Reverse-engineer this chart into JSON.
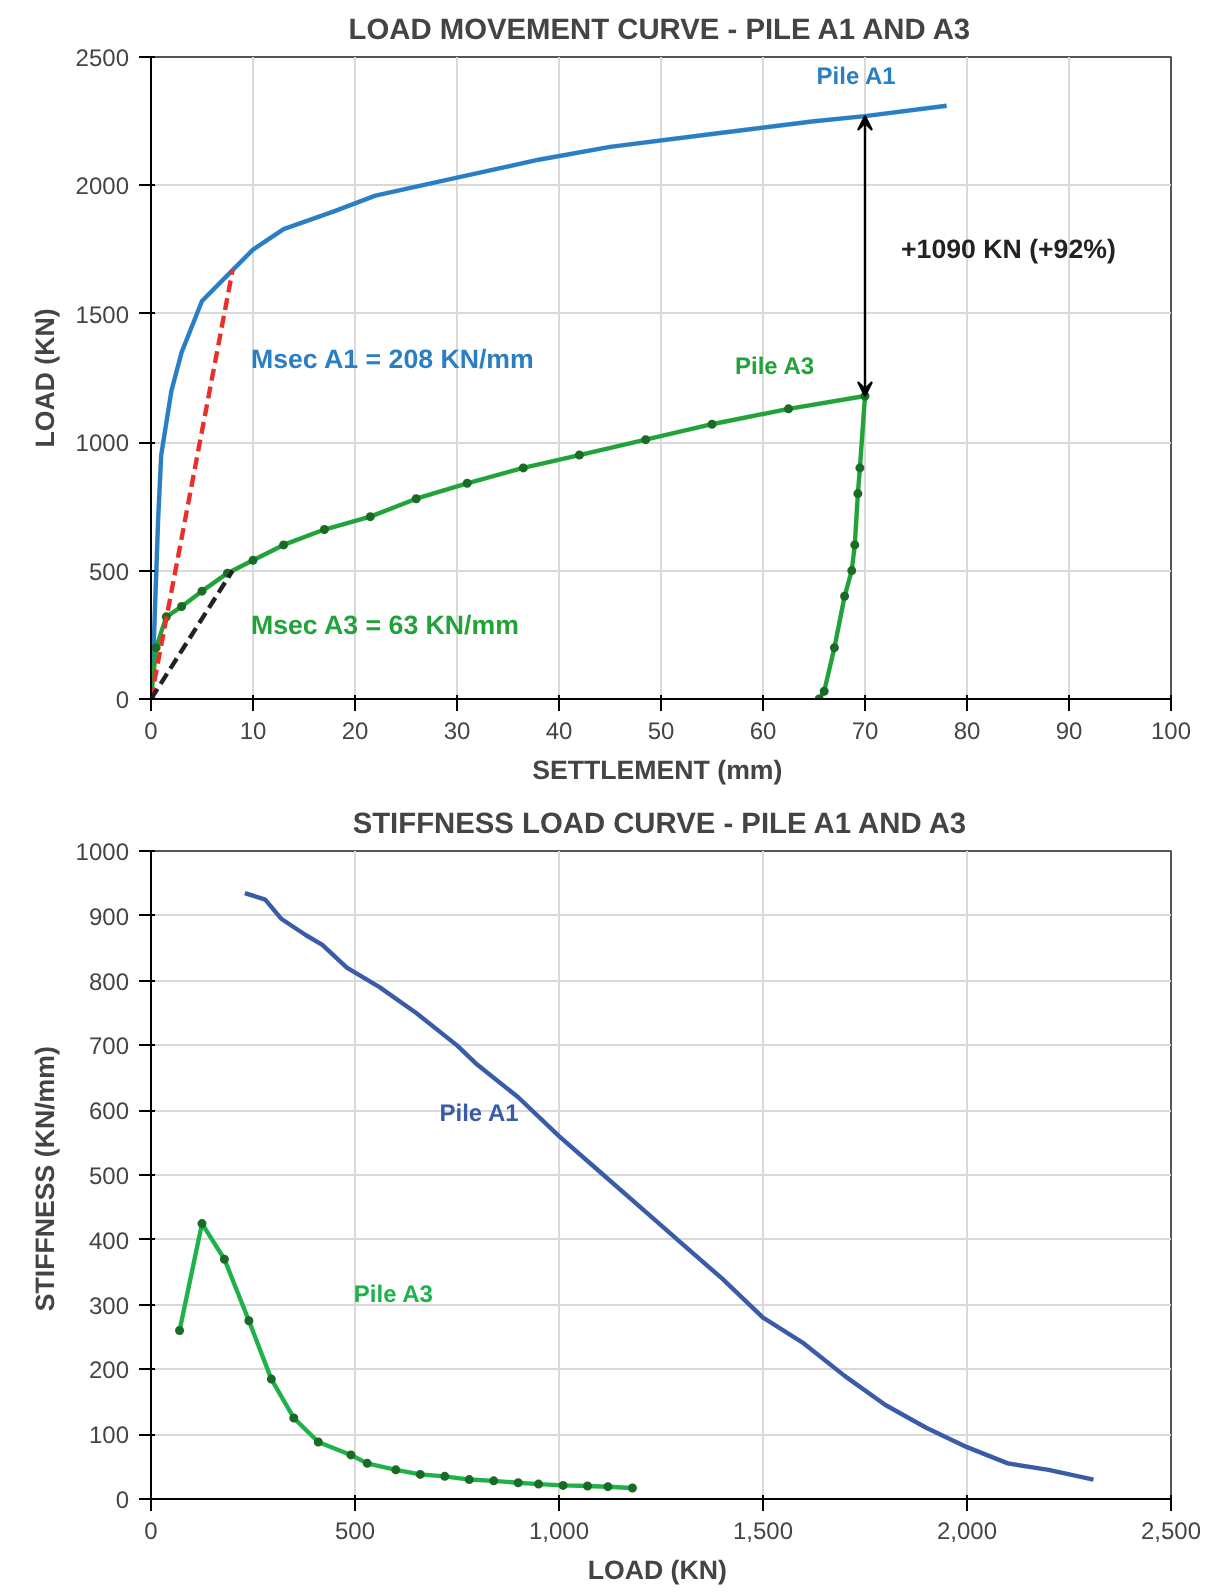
{
  "chart_data": [
    {
      "type": "line",
      "title": "LOAD MOVEMENT CURVE - PILE A1 AND A3",
      "xlabel": "SETTLEMENT  (mm)",
      "ylabel": "LOAD (KN)",
      "xlim": [
        0,
        100
      ],
      "xticks": [
        0,
        10,
        20,
        30,
        40,
        50,
        60,
        70,
        80,
        90,
        100
      ],
      "ylim": [
        0,
        2500
      ],
      "yticks": [
        0,
        500,
        1000,
        1500,
        2000,
        2500
      ],
      "grid": true,
      "series": [
        {
          "name": "Pile A1",
          "color": "#2a7fc4",
          "marker": "none",
          "x": [
            0,
            0.3,
            0.7,
            1,
            2,
            3,
            5,
            8,
            10,
            13,
            18,
            22,
            30,
            38,
            45,
            55,
            65,
            70,
            78
          ],
          "values": [
            0,
            250,
            700,
            950,
            1200,
            1350,
            1550,
            1670,
            1750,
            1830,
            1900,
            1960,
            2030,
            2100,
            2150,
            2200,
            2250,
            2270,
            2310
          ]
        },
        {
          "name": "Pile A3",
          "color": "#22a33a",
          "marker": "circle",
          "x": [
            0,
            0.5,
            1.5,
            3,
            5,
            7.5,
            10,
            13,
            17,
            21.5,
            26,
            31,
            36.5,
            42,
            48.5,
            55,
            62.5,
            70,
            69.5,
            69.3,
            69,
            68.7,
            68,
            67,
            66,
            65.5
          ],
          "values": [
            0,
            200,
            320,
            360,
            420,
            490,
            540,
            600,
            660,
            710,
            780,
            840,
            900,
            950,
            1010,
            1070,
            1130,
            1180,
            900,
            800,
            600,
            500,
            400,
            200,
            30,
            0
          ]
        },
        {
          "color": "#e8302a",
          "marker": "none",
          "line_style": "dashed",
          "x": [
            0,
            8
          ],
          "values": [
            0,
            1670
          ]
        },
        {
          "color": "#222222",
          "marker": "none",
          "line_style": "dashed",
          "x": [
            0,
            8
          ],
          "values": [
            0,
            500
          ]
        }
      ],
      "annotations": [
        "Msec A1 = 208 KN/mm",
        "Msec A3 = 63 KN/mm",
        "+1090 KN (+92%)"
      ]
    },
    {
      "type": "line",
      "title": "STIFFNESS LOAD CURVE - PILE A1 AND A3",
      "xlabel": "LOAD  (KN)",
      "ylabel": "STIFFNESS  (KN/mm)",
      "xlim": [
        0,
        2500
      ],
      "xticks": [
        0,
        500,
        {
          "value": 1000,
          "label": "1,000"
        },
        {
          "value": 1500,
          "label": "1,500"
        },
        {
          "value": 2000,
          "label": "2,000"
        },
        {
          "value": 2500,
          "label": "2,500"
        }
      ],
      "ylim": [
        0,
        1000
      ],
      "yticks": [
        0,
        100,
        200,
        300,
        400,
        500,
        600,
        700,
        800,
        900,
        1000
      ],
      "grid": true,
      "series": [
        {
          "name": "Pile A1",
          "color": "#3a5ba8",
          "marker": "none",
          "x": [
            230,
            280,
            320,
            380,
            420,
            480,
            560,
            650,
            750,
            800,
            900,
            1000,
            1100,
            1200,
            1300,
            1400,
            1500,
            1600,
            1700,
            1800,
            1900,
            2000,
            2100,
            2200,
            2310
          ],
          "values": [
            935,
            925,
            895,
            870,
            855,
            820,
            790,
            750,
            700,
            670,
            620,
            560,
            505,
            450,
            395,
            340,
            280,
            240,
            190,
            145,
            110,
            80,
            55,
            45,
            30
          ]
        },
        {
          "name": "Pile A3",
          "color": "#1fb24a",
          "marker": "circle",
          "x": [
            70,
            125,
            180,
            240,
            295,
            350,
            410,
            490,
            530,
            600,
            660,
            720,
            780,
            840,
            900,
            950,
            1010,
            1070,
            1120,
            1180
          ],
          "values": [
            260,
            425,
            370,
            275,
            185,
            125,
            88,
            68,
            55,
            45,
            38,
            35,
            30,
            28,
            25,
            23,
            21,
            20,
            19,
            17
          ]
        }
      ]
    }
  ]
}
